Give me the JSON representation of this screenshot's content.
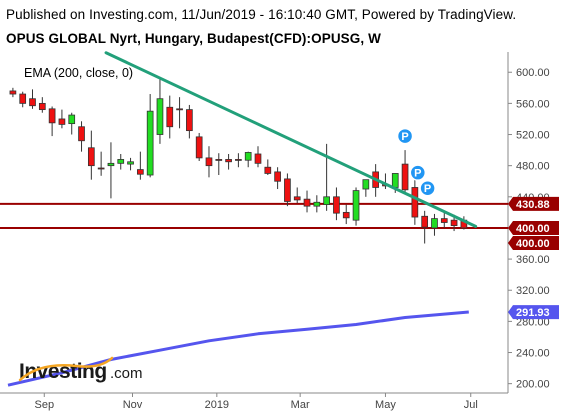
{
  "header": {
    "published": "Published on Investing.com, 11/Jun/2019 - 16:10:40 GMT, Powered by TradingView.",
    "symbol": "OPUS GLOBAL Nyrt, Hungary, Budapest(CFD):OPUSG, W"
  },
  "indicator": {
    "label": "EMA (200, close, 0)"
  },
  "logo": {
    "main": "Investing",
    "domain": ".com"
  },
  "colors": {
    "up": "#22dd22",
    "down": "#ee1111",
    "ema": "#5555ee",
    "trendline": "#22a07a",
    "hline": "#990000",
    "badge": "#2196f3",
    "tag_price": "#990000",
    "tag_ema": "#5555ee"
  },
  "chart_data": {
    "type": "candlestick",
    "interval": "W",
    "y_axis": {
      "ticks": [
        200,
        240,
        280,
        320,
        360,
        400,
        440,
        480,
        520,
        560,
        600
      ],
      "tick_labels": [
        "200.00",
        "240.00",
        "280.00",
        "320.00",
        "360.00",
        "400.00",
        "440.00",
        "480.00",
        "520.00",
        "560.00",
        "600.00"
      ],
      "range": [
        188,
        626
      ],
      "position": "right"
    },
    "x_axis": {
      "tick_labels": [
        {
          "label": "Sep",
          "week": 3.2
        },
        {
          "label": "Nov",
          "week": 12.2
        },
        {
          "label": "2019",
          "week": 20.8
        },
        {
          "label": "Mar",
          "week": 29.3
        },
        {
          "label": "May",
          "week": 38.0
        },
        {
          "label": "Jul",
          "week": 46.7
        }
      ],
      "range": [
        -0.5,
        50.5
      ]
    },
    "candles": [
      {
        "o": 576,
        "h": 580,
        "l": 568,
        "c": 572
      },
      {
        "o": 572,
        "h": 575,
        "l": 555,
        "c": 560
      },
      {
        "o": 566,
        "h": 578,
        "l": 553,
        "c": 557
      },
      {
        "o": 560,
        "h": 568,
        "l": 548,
        "c": 552
      },
      {
        "o": 553,
        "h": 556,
        "l": 518,
        "c": 535
      },
      {
        "o": 540,
        "h": 552,
        "l": 528,
        "c": 533
      },
      {
        "o": 534,
        "h": 548,
        "l": 520,
        "c": 545
      },
      {
        "o": 530,
        "h": 537,
        "l": 498,
        "c": 512
      },
      {
        "o": 503,
        "h": 525,
        "l": 462,
        "c": 480
      },
      {
        "o": 477,
        "h": 498,
        "l": 467,
        "c": 476
      },
      {
        "o": 480,
        "h": 510,
        "l": 438,
        "c": 483
      },
      {
        "o": 483,
        "h": 495,
        "l": 475,
        "c": 488
      },
      {
        "o": 482,
        "h": 490,
        "l": 474,
        "c": 485
      },
      {
        "o": 475,
        "h": 498,
        "l": 462,
        "c": 469
      },
      {
        "o": 468,
        "h": 572,
        "l": 465,
        "c": 550
      },
      {
        "o": 520,
        "h": 592,
        "l": 508,
        "c": 566
      },
      {
        "o": 555,
        "h": 570,
        "l": 515,
        "c": 530
      },
      {
        "o": 553,
        "h": 568,
        "l": 528,
        "c": 552
      },
      {
        "o": 552,
        "h": 558,
        "l": 515,
        "c": 525
      },
      {
        "o": 517,
        "h": 522,
        "l": 486,
        "c": 490
      },
      {
        "o": 490,
        "h": 505,
        "l": 465,
        "c": 480
      },
      {
        "o": 488,
        "h": 496,
        "l": 468,
        "c": 487
      },
      {
        "o": 488,
        "h": 495,
        "l": 475,
        "c": 485
      },
      {
        "o": 488,
        "h": 496,
        "l": 478,
        "c": 487
      },
      {
        "o": 487,
        "h": 498,
        "l": 478,
        "c": 497
      },
      {
        "o": 495,
        "h": 505,
        "l": 478,
        "c": 483
      },
      {
        "o": 478,
        "h": 488,
        "l": 468,
        "c": 470
      },
      {
        "o": 472,
        "h": 478,
        "l": 450,
        "c": 460
      },
      {
        "o": 463,
        "h": 470,
        "l": 428,
        "c": 434
      },
      {
        "o": 440,
        "h": 452,
        "l": 432,
        "c": 436
      },
      {
        "o": 437,
        "h": 448,
        "l": 420,
        "c": 428
      },
      {
        "o": 428,
        "h": 442,
        "l": 420,
        "c": 433
      },
      {
        "o": 430,
        "h": 508,
        "l": 422,
        "c": 440
      },
      {
        "o": 440,
        "h": 452,
        "l": 410,
        "c": 419
      },
      {
        "o": 420,
        "h": 430,
        "l": 405,
        "c": 413
      },
      {
        "o": 410,
        "h": 452,
        "l": 403,
        "c": 448
      },
      {
        "o": 450,
        "h": 462,
        "l": 440,
        "c": 462
      },
      {
        "o": 472,
        "h": 482,
        "l": 440,
        "c": 452
      },
      {
        "o": 456,
        "h": 470,
        "l": 450,
        "c": 454
      },
      {
        "o": 452,
        "h": 470,
        "l": 445,
        "c": 470
      },
      {
        "o": 482,
        "h": 500,
        "l": 445,
        "c": 449
      },
      {
        "o": 452,
        "h": 470,
        "l": 404,
        "c": 414
      },
      {
        "o": 415,
        "h": 422,
        "l": 380,
        "c": 401
      },
      {
        "o": 400,
        "h": 418,
        "l": 390,
        "c": 412
      },
      {
        "o": 412,
        "h": 420,
        "l": 400,
        "c": 407
      },
      {
        "o": 410,
        "h": 417,
        "l": 396,
        "c": 403
      },
      {
        "o": 410,
        "h": 415,
        "l": 398,
        "c": 400
      }
    ],
    "ema": {
      "name": "EMA (200, close, 0)",
      "x": [
        -0.5,
        5,
        10,
        15,
        20,
        25,
        30,
        35,
        40,
        46.5
      ],
      "y": [
        198,
        214,
        231,
        243,
        255,
        264,
        270,
        276,
        285,
        292
      ]
    },
    "trendline": {
      "x": [
        9.5,
        47.2
      ],
      "y": [
        625,
        402
      ]
    },
    "horizontal_lines": [
      {
        "value": 430.88,
        "label": "430.88"
      },
      {
        "value": 400.0,
        "label": "400.00"
      }
    ],
    "price_tags": [
      {
        "value": 430.88,
        "label": "430.88",
        "kind": "line"
      },
      {
        "value": 400.0,
        "label": "400.00",
        "kind": "line"
      },
      {
        "value": 400.0,
        "label": "400.00",
        "kind": "last",
        "offset_label": true
      },
      {
        "value": 291.93,
        "label": "291.93",
        "kind": "ema"
      }
    ],
    "event_markers": [
      {
        "week": 40,
        "value": 518,
        "label": "P"
      },
      {
        "week": 41.3,
        "value": 471,
        "label": "P"
      },
      {
        "week": 42.3,
        "value": 451,
        "label": "P"
      }
    ],
    "grid": false
  }
}
